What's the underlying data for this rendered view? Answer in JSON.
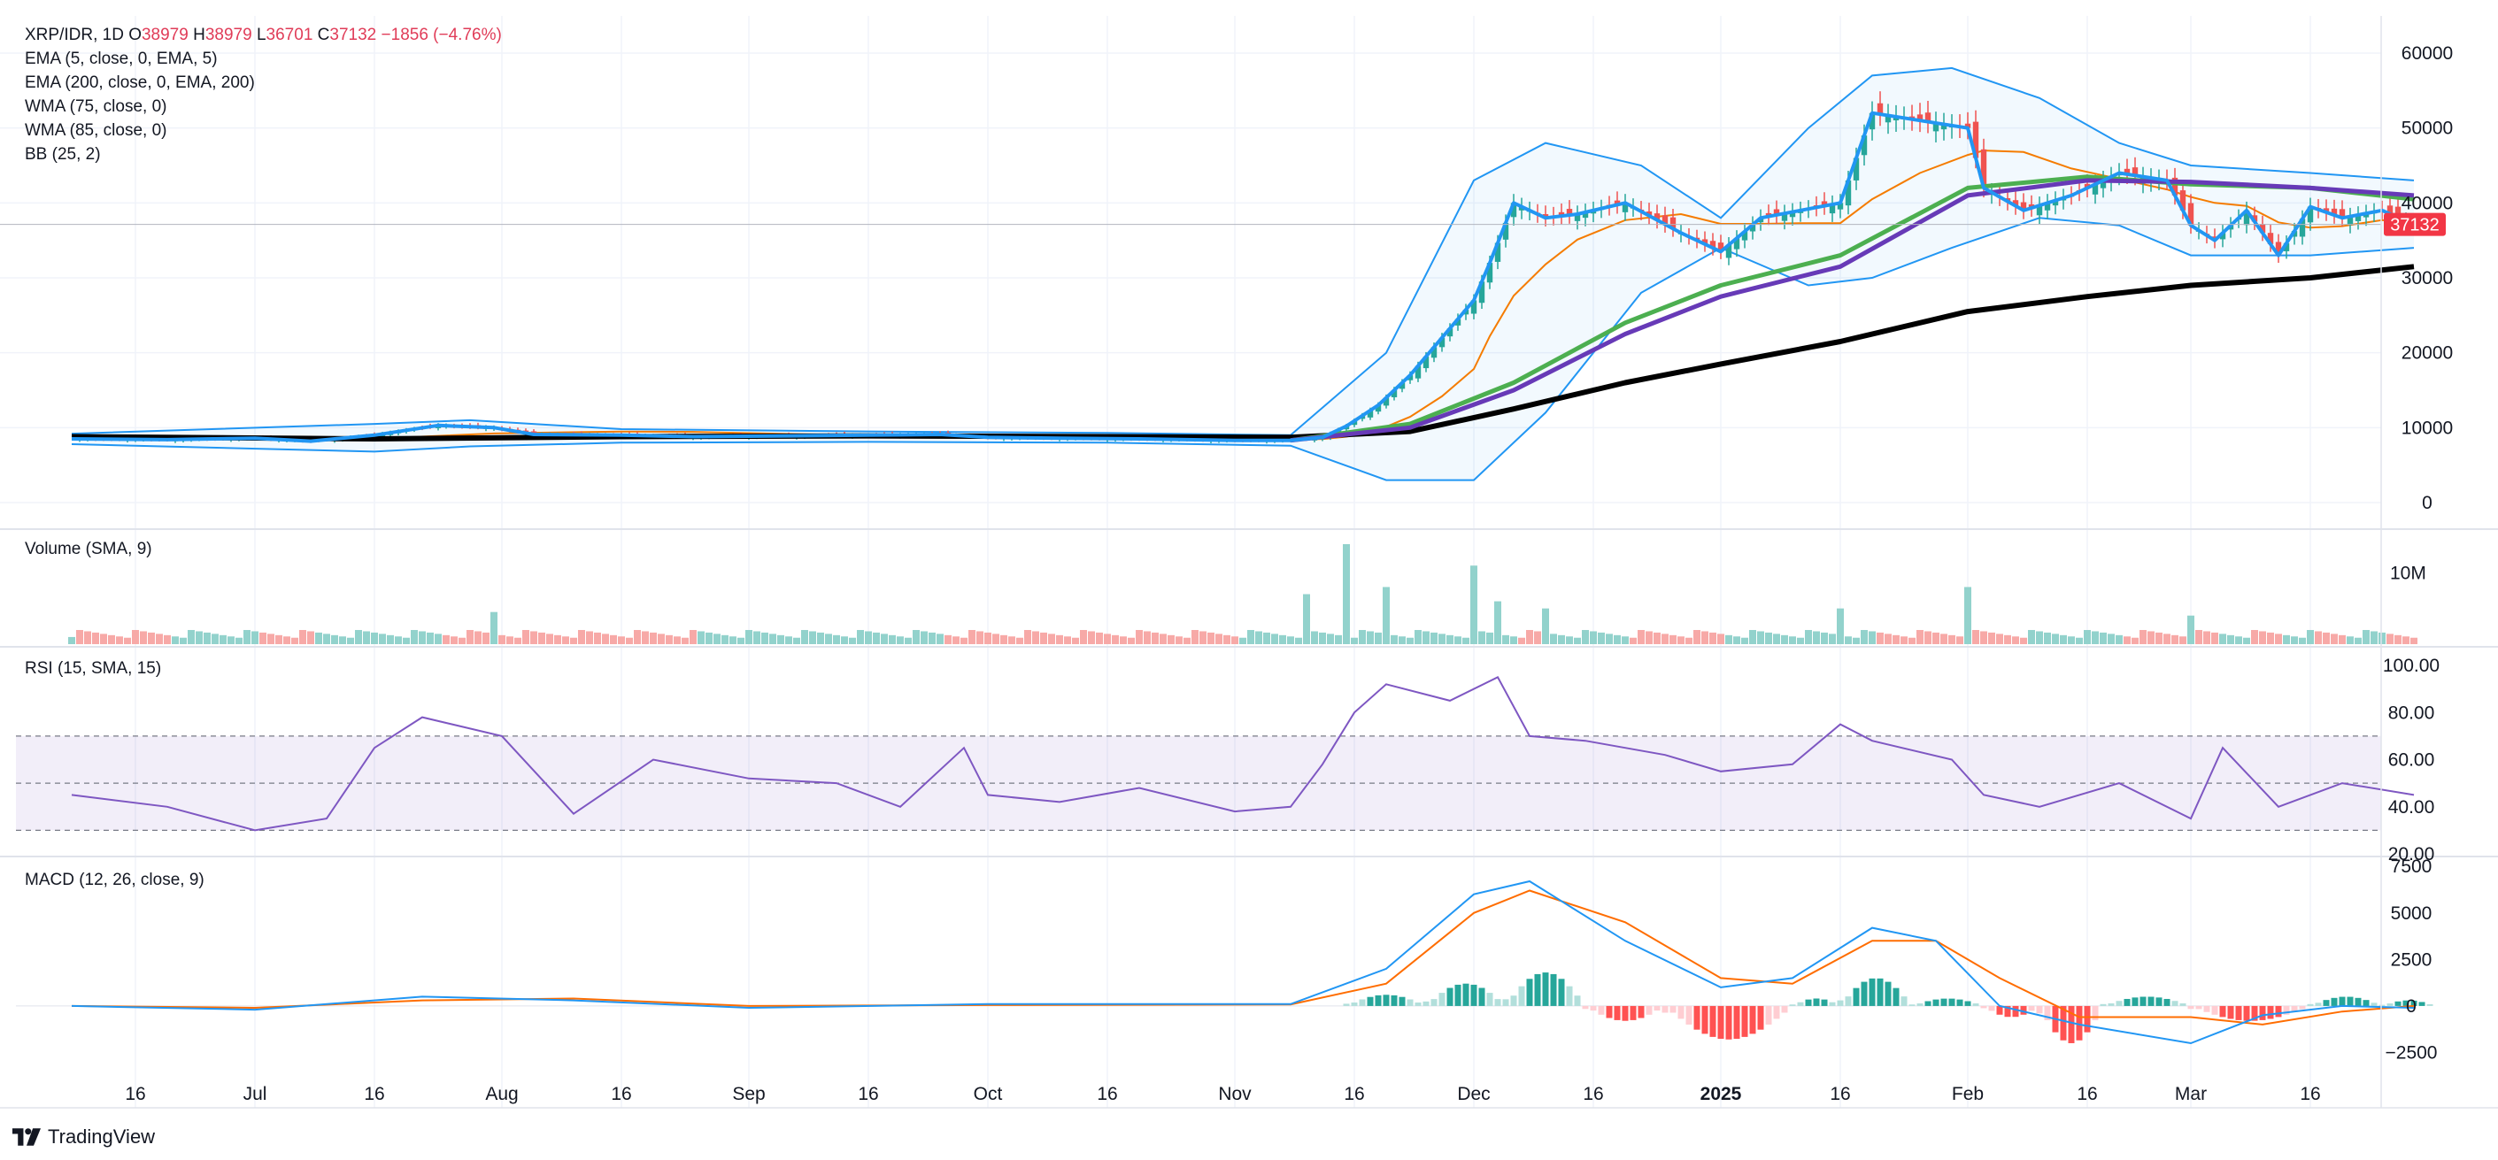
{
  "header": {
    "symbol": "XRP/IDR, 1D",
    "open_label": "O",
    "open": "38979",
    "high_label": "H",
    "high": "38979",
    "low_label": "L",
    "low": "36701",
    "close_label": "C",
    "close": "37132",
    "change": "−1856 (−4.76%)"
  },
  "indicators": [
    "EMA (5, close, 0, EMA, 5)",
    "EMA (200, close, 0, EMA, 200)",
    "WMA (75, close, 0)",
    "WMA (85, close, 0)",
    "BB (25, 2)"
  ],
  "panels": {
    "volume_title": "Volume (SMA, 9)",
    "rsi_title": "RSI (15, SMA, 15)",
    "macd_title": "MACD (12, 26, close, 9)"
  },
  "brand": "TradingView",
  "colors": {
    "up": "#26a69a",
    "down": "#ef5350",
    "ema5": "#2196f3",
    "ema200": "#000000",
    "wma75": "#4caf50",
    "wma85": "#673ab7",
    "bb_basis": "#f57c00",
    "bb_band": "#2196f3",
    "rsi": "#7e57c2",
    "macd": "#2196f3",
    "signal": "#ff6d00"
  },
  "chart_data": [
    {
      "type": "candlestick",
      "title": "XRP/IDR, 1D",
      "x_ticks": [
        "16",
        "Jul",
        "16",
        "Aug",
        "16",
        "Sep",
        "16",
        "Oct",
        "16",
        "Nov",
        "16",
        "Dec",
        "16",
        "2025",
        "16",
        "Feb",
        "16",
        "Mar",
        "16"
      ],
      "y_ticks": [
        "0",
        "10000",
        "20000",
        "30000",
        "40000",
        "50000",
        "60000"
      ],
      "ylim": [
        0,
        60000
      ],
      "last_price": "37132",
      "close_series": {
        "x": [
          "2024-06-08",
          "2024-06-20",
          "2024-07-01",
          "2024-07-08",
          "2024-07-16",
          "2024-07-24",
          "2024-07-31",
          "2024-08-05",
          "2024-08-16",
          "2024-08-25",
          "2024-09-06",
          "2024-09-16",
          "2024-09-25",
          "2024-10-01",
          "2024-10-10",
          "2024-10-20",
          "2024-11-01",
          "2024-11-08",
          "2024-11-12",
          "2024-11-15",
          "2024-11-19",
          "2024-11-23",
          "2024-11-27",
          "2024-12-01",
          "2024-12-03",
          "2024-12-06",
          "2024-12-10",
          "2024-12-14",
          "2024-12-20",
          "2024-12-27",
          "2025-01-01",
          "2025-01-06",
          "2025-01-11",
          "2025-01-16",
          "2025-01-20",
          "2025-01-26",
          "2025-02-01",
          "2025-02-03",
          "2025-02-08",
          "2025-02-14",
          "2025-02-20",
          "2025-02-26",
          "2025-03-01",
          "2025-03-04",
          "2025-03-08",
          "2025-03-12",
          "2025-03-16",
          "2025-03-20",
          "2025-03-25",
          "2025-03-29"
        ],
        "values": [
          8500,
          8400,
          8600,
          8200,
          9000,
          10300,
          10000,
          9100,
          9000,
          8800,
          8900,
          9000,
          9100,
          8700,
          8600,
          8500,
          8300,
          8300,
          8700,
          10200,
          13000,
          17000,
          22000,
          27000,
          32000,
          40000,
          38000,
          38500,
          40000,
          36000,
          33500,
          38000,
          39000,
          40000,
          52000,
          51000,
          50000,
          42000,
          39000,
          41000,
          44000,
          43000,
          37000,
          35000,
          39000,
          33000,
          39500,
          38000,
          39000,
          37132
        ]
      },
      "series": [
        {
          "name": "EMA (200, close, 0, EMA, 200)",
          "x": [
            "2024-06-08",
            "2024-07-16",
            "2024-08-16",
            "2024-09-16",
            "2024-10-16",
            "2024-11-08",
            "2024-11-23",
            "2024-12-06",
            "2024-12-20",
            "2025-01-01",
            "2025-01-16",
            "2025-02-01",
            "2025-02-16",
            "2025-03-01",
            "2025-03-16",
            "2025-03-29"
          ],
          "values": [
            8800,
            8500,
            8800,
            8900,
            8800,
            8700,
            9500,
            12500,
            16000,
            18500,
            21500,
            25500,
            27500,
            29000,
            30000,
            31500
          ]
        },
        {
          "name": "WMA (75, close, 0)",
          "x": [
            "2024-11-08",
            "2024-11-23",
            "2024-12-06",
            "2024-12-20",
            "2025-01-01",
            "2025-01-16",
            "2025-02-01",
            "2025-02-16",
            "2025-03-01",
            "2025-03-16",
            "2025-03-29"
          ],
          "values": [
            8300,
            10500,
            16000,
            24000,
            29000,
            33000,
            42000,
            43500,
            42500,
            42000,
            40500
          ]
        },
        {
          "name": "WMA (85, close, 0)",
          "x": [
            "2024-11-08",
            "2024-11-23",
            "2024-12-06",
            "2024-12-20",
            "2025-01-01",
            "2025-01-16",
            "2025-02-01",
            "2025-02-16",
            "2025-03-01",
            "2025-03-16",
            "2025-03-29"
          ],
          "values": [
            8300,
            10000,
            15000,
            22500,
            27500,
            31500,
            41000,
            43000,
            42800,
            42000,
            41000
          ]
        },
        {
          "name": "BB upper",
          "x": [
            "2024-06-08",
            "2024-07-16",
            "2024-07-28",
            "2024-08-16",
            "2024-09-16",
            "2024-10-16",
            "2024-11-08",
            "2024-11-20",
            "2024-12-01",
            "2024-12-10",
            "2024-12-22",
            "2025-01-01",
            "2025-01-12",
            "2025-01-20",
            "2025-01-30",
            "2025-02-10",
            "2025-02-20",
            "2025-03-01",
            "2025-03-16",
            "2025-03-29"
          ],
          "values": [
            9200,
            10500,
            11000,
            9800,
            9500,
            9300,
            9000,
            20000,
            43000,
            48000,
            45000,
            38000,
            50000,
            57000,
            58000,
            54000,
            48000,
            45000,
            44000,
            43000
          ]
        },
        {
          "name": "BB lower",
          "x": [
            "2024-06-08",
            "2024-07-16",
            "2024-07-28",
            "2024-08-16",
            "2024-09-16",
            "2024-10-16",
            "2024-11-08",
            "2024-11-20",
            "2024-12-01",
            "2024-12-10",
            "2024-12-22",
            "2025-01-01",
            "2025-01-12",
            "2025-01-20",
            "2025-01-30",
            "2025-02-10",
            "2025-02-20",
            "2025-03-01",
            "2025-03-16",
            "2025-03-29"
          ],
          "values": [
            7800,
            6800,
            7500,
            8000,
            8100,
            8000,
            7600,
            3000,
            3000,
            12000,
            28000,
            34000,
            29000,
            30000,
            34000,
            38000,
            37000,
            33000,
            33000,
            34000
          ]
        }
      ]
    },
    {
      "type": "bar",
      "title": "Volume (SMA, 9)",
      "y_ticks": [
        "10M"
      ],
      "x": [
        "2024-06-08",
        "2024-07-31",
        "2024-11-10",
        "2024-11-15",
        "2024-11-20",
        "2024-12-01",
        "2024-12-04",
        "2024-12-10",
        "2025-01-16",
        "2025-02-01",
        "2025-03-01"
      ],
      "values": [
        1000000,
        4500000,
        7000000,
        14000000,
        8000000,
        11000000,
        6000000,
        5000000,
        5000000,
        8000000,
        4000000
      ]
    },
    {
      "type": "line",
      "title": "RSI (15, SMA, 15)",
      "y_ticks": [
        "20.00",
        "40.00",
        "60.00",
        "80.00",
        "100.00"
      ],
      "ylim": [
        20,
        100
      ],
      "band": [
        30,
        70
      ],
      "midline": 50,
      "x": [
        "2024-06-08",
        "2024-06-20",
        "2024-07-01",
        "2024-07-10",
        "2024-07-16",
        "2024-07-22",
        "2024-08-01",
        "2024-08-10",
        "2024-08-20",
        "2024-09-01",
        "2024-09-12",
        "2024-09-20",
        "2024-09-28",
        "2024-10-01",
        "2024-10-10",
        "2024-10-20",
        "2024-11-01",
        "2024-11-08",
        "2024-11-12",
        "2024-11-16",
        "2024-11-20",
        "2024-11-28",
        "2024-12-04",
        "2024-12-08",
        "2024-12-15",
        "2024-12-25",
        "2025-01-01",
        "2025-01-10",
        "2025-01-16",
        "2025-01-20",
        "2025-01-30",
        "2025-02-03",
        "2025-02-10",
        "2025-02-20",
        "2025-03-01",
        "2025-03-05",
        "2025-03-12",
        "2025-03-20",
        "2025-03-29"
      ],
      "values": [
        45,
        40,
        30,
        35,
        65,
        78,
        70,
        37,
        60,
        52,
        50,
        40,
        65,
        45,
        42,
        48,
        38,
        40,
        58,
        80,
        92,
        85,
        95,
        70,
        68,
        62,
        55,
        58,
        75,
        68,
        60,
        45,
        40,
        50,
        35,
        65,
        40,
        50,
        45
      ]
    },
    {
      "type": "line",
      "title": "MACD (12, 26, close, 9)",
      "y_ticks": [
        "−2500",
        "0",
        "2500",
        "5000",
        "7500"
      ],
      "ylim": [
        -3000,
        7700
      ],
      "series": [
        {
          "name": "MACD",
          "x": [
            "2024-06-08",
            "2024-07-01",
            "2024-07-22",
            "2024-08-10",
            "2024-09-01",
            "2024-10-01",
            "2024-11-08",
            "2024-11-20",
            "2024-12-01",
            "2024-12-08",
            "2024-12-20",
            "2025-01-01",
            "2025-01-10",
            "2025-01-20",
            "2025-01-28",
            "2025-02-05",
            "2025-02-15",
            "2025-03-01",
            "2025-03-10",
            "2025-03-20",
            "2025-03-29"
          ],
          "values": [
            0,
            -200,
            500,
            300,
            -100,
            100,
            100,
            2000,
            6000,
            6700,
            3500,
            1000,
            1500,
            4200,
            3500,
            0,
            -1000,
            -2000,
            -500,
            0,
            -100
          ]
        },
        {
          "name": "Signal",
          "x": [
            "2024-06-08",
            "2024-07-01",
            "2024-07-22",
            "2024-08-10",
            "2024-09-01",
            "2024-10-01",
            "2024-11-08",
            "2024-11-20",
            "2024-12-01",
            "2024-12-08",
            "2024-12-20",
            "2025-01-01",
            "2025-01-10",
            "2025-01-20",
            "2025-01-28",
            "2025-02-05",
            "2025-02-15",
            "2025-03-01",
            "2025-03-10",
            "2025-03-20",
            "2025-03-29"
          ],
          "values": [
            0,
            -100,
            300,
            400,
            0,
            50,
            80,
            1200,
            5000,
            6200,
            4500,
            1500,
            1200,
            3500,
            3500,
            1500,
            -600,
            -600,
            -1000,
            -300,
            0
          ]
        },
        {
          "name": "Histogram",
          "x": [
            "2024-11-15",
            "2024-11-25",
            "2024-12-05",
            "2024-12-15",
            "2024-12-25",
            "2025-01-10",
            "2025-01-16",
            "2025-01-25",
            "2025-02-03",
            "2025-02-10",
            "2025-02-18",
            "2025-03-01",
            "2025-03-16",
            "2025-03-25"
          ],
          "values": [
            600,
            1200,
            1800,
            -800,
            -1800,
            400,
            1500,
            400,
            -600,
            -2000,
            500,
            -800,
            500,
            300
          ]
        }
      ]
    }
  ]
}
